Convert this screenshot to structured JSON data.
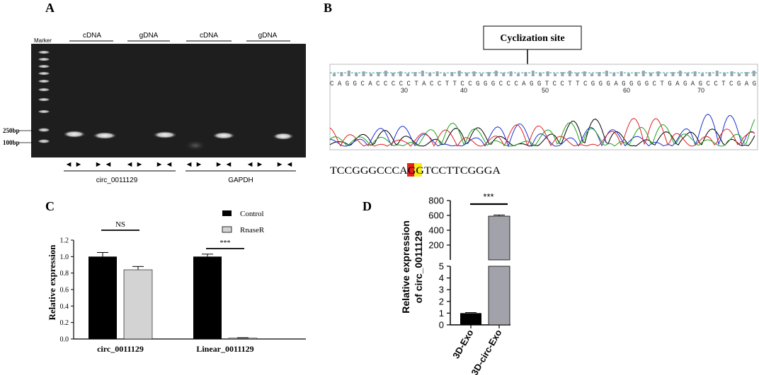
{
  "panels": {
    "A": {
      "letter": "A",
      "marker_label": "Marker",
      "top_labels": [
        "cDNA",
        "gDNA",
        "cDNA",
        "gDNA"
      ],
      "ladder_labels": [
        "250bp",
        "100bp"
      ],
      "primer_glyphs": [
        "◄ ►",
        "► ◄",
        "◄ ►",
        "► ◄",
        "◄ ►",
        "► ◄",
        "◄ ►",
        "► ◄"
      ],
      "bottom_labels": [
        "circ_0011129",
        "GAPDH"
      ]
    },
    "B": {
      "letter": "B",
      "callout": "Cyclization site",
      "sequence_read": "C A G G C A C C C C C T A C C T T C C G G G C C C A G G T C C T T C G G G A G G G G C T G A G A G C C T C G A G",
      "ruler_numbers": [
        "30",
        "40",
        "50",
        "60",
        "70"
      ],
      "junction": {
        "prefix": "TCCGGGCCCA",
        "base_red": "G",
        "base_yellow": "G",
        "suffix": "TCCTTCGGGA",
        "colors": {
          "red": "#e8201c",
          "yellow": "#f7ee1a"
        }
      }
    }
  },
  "chart_data": [
    {
      "type": "bar",
      "panel": "C",
      "ylabel": "Relative expression",
      "ylim": [
        0,
        1.2
      ],
      "yticks": [
        "0.0",
        "0.2",
        "0.4",
        "0.6",
        "0.8",
        "1.0",
        "1.2"
      ],
      "categories": [
        "circ_0011129",
        "Linear_0011129"
      ],
      "series": [
        {
          "name": "Control",
          "values": [
            1.0,
            1.0
          ],
          "errors": [
            0.05,
            0.03
          ],
          "color": "#000000"
        },
        {
          "name": "RnaseR",
          "values": [
            0.84,
            0.01
          ],
          "errors": [
            0.04,
            0.005
          ],
          "color": "#d3d3d3"
        }
      ],
      "significance": [
        "NS",
        "***"
      ]
    },
    {
      "type": "bar",
      "panel": "D",
      "ylabel": [
        "Relative expression",
        "of circ_0011129"
      ],
      "axis_break": true,
      "lower_ticks": [
        "0",
        "1",
        "2",
        "3",
        "4",
        "5"
      ],
      "upper_ticks": [
        "200",
        "400",
        "600",
        "800"
      ],
      "categories": [
        "3D-Exo",
        "3D-circ-Exo"
      ],
      "values": [
        1.0,
        590
      ],
      "errors": [
        0.05,
        15
      ],
      "colors": [
        "#000000",
        "#a2a2aa"
      ],
      "significance": "***"
    }
  ]
}
